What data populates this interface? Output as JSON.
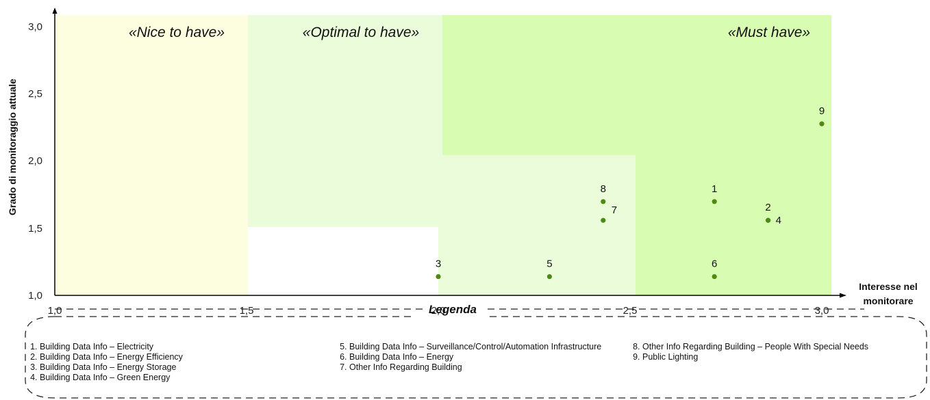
{
  "chart_data": {
    "type": "scatter",
    "xlabel_lines": [
      "Interesse nel",
      "monitorare"
    ],
    "ylabel": "Grado di monitoraggio attuale",
    "xlim": [
      1.0,
      3.0
    ],
    "ylim": [
      1.0,
      3.0
    ],
    "x_ticks": [
      "1,0",
      "1,5",
      "2,0",
      "2,5",
      "3,0"
    ],
    "y_ticks": [
      "1,0",
      "1,5",
      "2,0",
      "2,5",
      "3,0"
    ],
    "grid": false,
    "point_color": "#4d8a12",
    "regions": [
      {
        "name": "Nice to have",
        "label": "«Nice to have»",
        "color": "#fdfde0"
      },
      {
        "name": "Optimal to have",
        "label": "«Optimal to have»",
        "color": "#ebfcdb"
      },
      {
        "name": "Must have",
        "label": "«Must have»",
        "color": "#d9fcb3"
      }
    ],
    "points": [
      {
        "label": "1",
        "x": 2.72,
        "y": 1.7
      },
      {
        "label": "2",
        "x": 2.86,
        "y": 1.56
      },
      {
        "label": "3",
        "x": 2.0,
        "y": 1.14
      },
      {
        "label": "4",
        "x": 2.86,
        "y": 1.56
      },
      {
        "label": "5",
        "x": 2.29,
        "y": 1.14
      },
      {
        "label": "6",
        "x": 2.72,
        "y": 1.14
      },
      {
        "label": "7",
        "x": 2.43,
        "y": 1.56
      },
      {
        "label": "8",
        "x": 2.43,
        "y": 1.7
      },
      {
        "label": "9",
        "x": 3.0,
        "y": 2.28
      }
    ]
  },
  "legend": {
    "title": "Legenda",
    "columns": [
      [
        "Building Data Info – Electricity",
        "Building Data Info – Energy Efficiency",
        "Building Data Info – Energy Storage",
        "Building Data Info – Green Energy"
      ],
      [
        "Building Data Info – Surveillance/Control/Automation Infrastructure",
        "Building Data Info – Energy",
        "Other Info Regarding Building"
      ],
      [
        "Other Info Regarding Building – People With Special Needs",
        "Public Lighting"
      ]
    ]
  }
}
